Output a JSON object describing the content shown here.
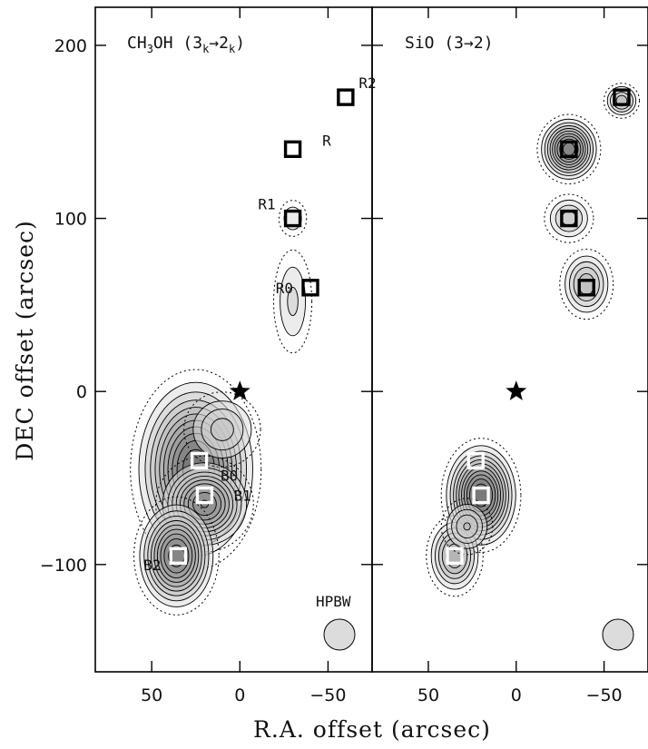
{
  "chart_data": {
    "type": "scatter",
    "xlabel": "R.A. offset (arcsec)",
    "ylabel": "DEC offset (arcsec)",
    "xlim": [
      82,
      -75
    ],
    "ylim": [
      -162,
      222
    ],
    "x_ticks": [
      50,
      0,
      -50
    ],
    "y_ticks": [
      200,
      100,
      0,
      -100
    ],
    "x_tick_labels": [
      "50",
      "0",
      "−50"
    ],
    "y_tick_labels": [
      "200",
      "100",
      "0",
      "−100"
    ],
    "beam_label": "HPBW",
    "star": {
      "x": 0,
      "y": 0
    },
    "panels": [
      {
        "title_main": "CH",
        "title_sub1": "3",
        "title_mid": "OH (3",
        "title_sub2": "k",
        "title_arrow": "→2",
        "title_sub3": "k",
        "title_end": ")",
        "positions": [
          {
            "name": "R2",
            "x": -60,
            "y": 170,
            "color": "black",
            "label_dx": 11,
            "label_dy": 10
          },
          {
            "name": "R",
            "x": -30,
            "y": 140,
            "color": "black",
            "label_dx": 17,
            "label_dy": 6
          },
          {
            "name": "R1",
            "x": -30,
            "y": 100,
            "color": "black",
            "label_dx": -13,
            "label_dy": 10
          },
          {
            "name": "R0",
            "x": -40,
            "y": 60,
            "color": "black",
            "label_dx": -13,
            "label_dy": 0
          },
          {
            "name": "B0",
            "x": 23,
            "y": -40,
            "color": "white",
            "label_dx": 15,
            "label_dy": -10
          },
          {
            "name": "B1",
            "x": 20,
            "y": -60,
            "color": "white",
            "label_dx": 19,
            "label_dy": 0
          },
          {
            "name": "B2",
            "x": 35,
            "y": -95,
            "color": "white",
            "label_dx": -13,
            "label_dy": -6
          }
        ],
        "emission": [
          {
            "x": 25,
            "y": -45,
            "sx": 18,
            "sy": 28,
            "peak": 1.0
          },
          {
            "x": 20,
            "y": -65,
            "sx": 14,
            "sy": 14,
            "peak": 0.85
          },
          {
            "x": 36,
            "y": -95,
            "sx": 12,
            "sy": 17,
            "peak": 0.9
          },
          {
            "x": 10,
            "y": -22,
            "sx": 14,
            "sy": 14,
            "peak": 0.4
          },
          {
            "x": -30,
            "y": 52,
            "sx": 8,
            "sy": 22,
            "peak": 0.3
          },
          {
            "x": -30,
            "y": 100,
            "sx": 6,
            "sy": 8,
            "peak": 0.28
          }
        ]
      },
      {
        "title_text": "SiO (3→2)",
        "positions": [
          {
            "name": "",
            "x": -60,
            "y": 170,
            "color": "black"
          },
          {
            "name": "",
            "x": -30,
            "y": 140,
            "color": "black"
          },
          {
            "name": "",
            "x": -30,
            "y": 100,
            "color": "black"
          },
          {
            "name": "",
            "x": -40,
            "y": 60,
            "color": "black"
          },
          {
            "name": "",
            "x": 23,
            "y": -40,
            "color": "white"
          },
          {
            "name": "",
            "x": 20,
            "y": -60,
            "color": "white"
          },
          {
            "name": "",
            "x": 35,
            "y": -95,
            "color": "white"
          }
        ],
        "emission": [
          {
            "x": 20,
            "y": -60,
            "sx": 11,
            "sy": 16,
            "peak": 1.0
          },
          {
            "x": 35,
            "y": -95,
            "sx": 9,
            "sy": 13,
            "peak": 0.6
          },
          {
            "x": 28,
            "y": -78,
            "sx": 9,
            "sy": 10,
            "peak": 0.45
          },
          {
            "x": -30,
            "y": 140,
            "sx": 9,
            "sy": 10,
            "peak": 0.9
          },
          {
            "x": -30,
            "y": 100,
            "sx": 9,
            "sy": 9,
            "peak": 0.4
          },
          {
            "x": -40,
            "y": 62,
            "sx": 9,
            "sy": 12,
            "peak": 0.5
          },
          {
            "x": -60,
            "y": 168,
            "sx": 6,
            "sy": 6,
            "peak": 0.5
          }
        ]
      }
    ]
  }
}
